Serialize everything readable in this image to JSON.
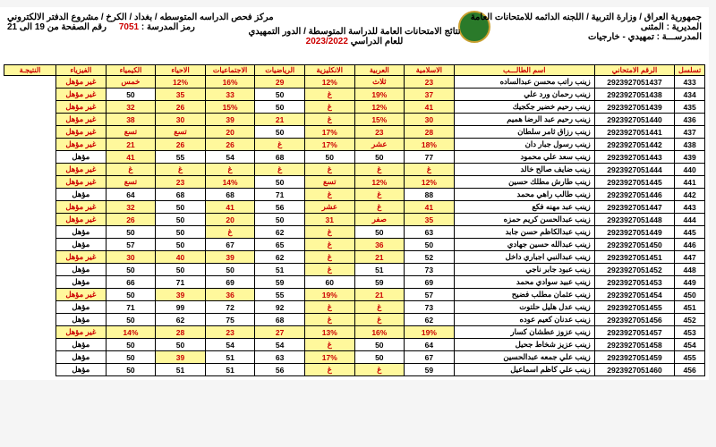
{
  "header": {
    "republic": "جمهورية العراق / وزارة التربية / اللجنه الدائمه للامتحانات العامة",
    "directorate_lbl": "المديرية :",
    "directorate": "المثنى",
    "school_lbl": "المدرســـة :",
    "school": "تمهيدي - خارجيات",
    "center": "مركز فحص الدراسه المتوسطه / بغداد / الكرخ / مشروع الدفتر الالكتروني",
    "code_lbl": "رمز المدرسة :",
    "code": "7051",
    "page_lbl": "رقم الصفحة من 19 الى 21",
    "results_title": "نتائج الامتحانات العامة للدراسة المتوسطة / الدور التمهيدي",
    "year_lbl": "للعام الدراسي",
    "year": "2023/2022"
  },
  "columns": [
    "تسلسل",
    "الرقم الامتحاني",
    "اسم الطالـــب",
    "الاسلامية",
    "العربية",
    "الانكليزية",
    "الرياضيات",
    "الاجتماعيات",
    "الاحياء",
    "الكيمياء",
    "الفيزياء",
    "النتيجـة"
  ],
  "rows": [
    {
      "seq": "433",
      "exam": "2923927051437",
      "name": "زينب راتب محسن عبدالساده",
      "c": [
        {
          "v": "23",
          "h": 1
        },
        {
          "v": "ثلاث",
          "h": 1
        },
        {
          "v": "12%",
          "h": 1
        },
        {
          "v": "29",
          "h": 1
        },
        {
          "v": "16%",
          "h": 1
        },
        {
          "v": "12%",
          "h": 1
        },
        {
          "v": "خمس",
          "h": 1
        }
      ],
      "res": "غير مؤهل",
      "rh": 1
    },
    {
      "seq": "434",
      "exam": "2923927051438",
      "name": "زينب رحمان ورد علي",
      "c": [
        {
          "v": "37",
          "h": 1
        },
        {
          "v": "19%",
          "h": 1
        },
        {
          "v": "غ",
          "h": 1
        },
        {
          "v": "50"
        },
        {
          "v": "33",
          "h": 1
        },
        {
          "v": "35",
          "h": 1
        },
        {
          "v": "50"
        }
      ],
      "res": "غير مؤهل",
      "rh": 1
    },
    {
      "seq": "435",
      "exam": "2923927051439",
      "name": "زينب رحيم خضير جكجيك",
      "c": [
        {
          "v": "41",
          "h": 1
        },
        {
          "v": "12%",
          "h": 1
        },
        {
          "v": "غ",
          "h": 1
        },
        {
          "v": "50"
        },
        {
          "v": "15%",
          "h": 1
        },
        {
          "v": "26",
          "h": 1
        },
        {
          "v": "32",
          "h": 1
        }
      ],
      "res": "غير مؤهل",
      "rh": 1
    },
    {
      "seq": "436",
      "exam": "2923927051440",
      "name": "زينب رحيم عبد الرضا هميم",
      "c": [
        {
          "v": "30",
          "h": 1
        },
        {
          "v": "15%",
          "h": 1
        },
        {
          "v": "غ",
          "h": 1
        },
        {
          "v": "21",
          "h": 1
        },
        {
          "v": "39",
          "h": 1
        },
        {
          "v": "30",
          "h": 1
        },
        {
          "v": "38",
          "h": 1
        }
      ],
      "res": "غير مؤهل",
      "rh": 1
    },
    {
      "seq": "437",
      "exam": "2923927051441",
      "name": "زينب رزاق ثامر سلطان",
      "c": [
        {
          "v": "28",
          "h": 1
        },
        {
          "v": "23",
          "h": 1
        },
        {
          "v": "17%",
          "h": 1
        },
        {
          "v": "50"
        },
        {
          "v": "20",
          "h": 1
        },
        {
          "v": "تسع",
          "h": 1
        },
        {
          "v": "تسع",
          "h": 1
        }
      ],
      "res": "غير مؤهل",
      "rh": 1
    },
    {
      "seq": "438",
      "exam": "2923927051442",
      "name": "زينب رسول جبار دان",
      "c": [
        {
          "v": "18%",
          "h": 1
        },
        {
          "v": "عشر",
          "h": 1
        },
        {
          "v": "17%",
          "h": 1
        },
        {
          "v": "غ",
          "h": 1
        },
        {
          "v": "26",
          "h": 1
        },
        {
          "v": "26",
          "h": 1
        },
        {
          "v": "21",
          "h": 1
        }
      ],
      "res": "غير مؤهل",
      "rh": 1
    },
    {
      "seq": "439",
      "exam": "2923927051443",
      "name": "زينب سعد علي محمود",
      "c": [
        {
          "v": "77"
        },
        {
          "v": "50"
        },
        {
          "v": "50"
        },
        {
          "v": "68"
        },
        {
          "v": "54"
        },
        {
          "v": "55"
        },
        {
          "v": "41",
          "h": 1
        }
      ],
      "res": "مؤهل"
    },
    {
      "seq": "440",
      "exam": "2923927051444",
      "name": "زينب ضايف صالح خالد",
      "c": [
        {
          "v": "غ",
          "h": 1
        },
        {
          "v": "غ",
          "h": 1
        },
        {
          "v": "غ",
          "h": 1
        },
        {
          "v": "غ",
          "h": 1
        },
        {
          "v": "غ",
          "h": 1
        },
        {
          "v": "غ",
          "h": 1
        },
        {
          "v": "غ",
          "h": 1
        }
      ],
      "res": "غير مؤهل",
      "rh": 1
    },
    {
      "seq": "441",
      "exam": "2923927051445",
      "name": "زينب طارش مطلك حسين",
      "c": [
        {
          "v": "12%",
          "h": 1
        },
        {
          "v": "12%",
          "h": 1
        },
        {
          "v": "تسع",
          "h": 1
        },
        {
          "v": "50"
        },
        {
          "v": "14%",
          "h": 1
        },
        {
          "v": "23",
          "h": 1
        },
        {
          "v": "تسع",
          "h": 1
        }
      ],
      "res": "غير مؤهل",
      "rh": 1
    },
    {
      "seq": "442",
      "exam": "2923927051446",
      "name": "زينب طالب راهي محمد",
      "c": [
        {
          "v": "88"
        },
        {
          "v": "غ",
          "h": 1
        },
        {
          "v": "غ",
          "h": 1
        },
        {
          "v": "71"
        },
        {
          "v": "68"
        },
        {
          "v": "68"
        },
        {
          "v": "64"
        }
      ],
      "res": "مؤهل"
    },
    {
      "seq": "443",
      "exam": "2923927051447",
      "name": "زينب عبد مهنه فكع",
      "c": [
        {
          "v": "41",
          "h": 1
        },
        {
          "v": "غ",
          "h": 1
        },
        {
          "v": "عشر",
          "h": 1
        },
        {
          "v": "56"
        },
        {
          "v": "41",
          "h": 1
        },
        {
          "v": "50"
        },
        {
          "v": "32",
          "h": 1
        }
      ],
      "res": "غير مؤهل",
      "rh": 1
    },
    {
      "seq": "444",
      "exam": "2923927051448",
      "name": "زينب عبدالحسن كريم حمزه",
      "c": [
        {
          "v": "35",
          "h": 1
        },
        {
          "v": "صفر",
          "h": 1
        },
        {
          "v": "31",
          "h": 1
        },
        {
          "v": "50"
        },
        {
          "v": "20",
          "h": 1
        },
        {
          "v": "50"
        },
        {
          "v": "26",
          "h": 1
        }
      ],
      "res": "غير مؤهل",
      "rh": 1
    },
    {
      "seq": "445",
      "exam": "2923927051449",
      "name": "زينب عبدالكاظم حسن جابد",
      "c": [
        {
          "v": "63"
        },
        {
          "v": "50"
        },
        {
          "v": "غ",
          "h": 1
        },
        {
          "v": "62"
        },
        {
          "v": "غ",
          "h": 1
        },
        {
          "v": "50"
        },
        {
          "v": "50"
        }
      ],
      "res": "مؤهل"
    },
    {
      "seq": "446",
      "exam": "2923927051450",
      "name": "زينب عبدالله حسين جهادي",
      "c": [
        {
          "v": "50"
        },
        {
          "v": "36",
          "h": 1
        },
        {
          "v": "غ",
          "h": 1
        },
        {
          "v": "65"
        },
        {
          "v": "67"
        },
        {
          "v": "50"
        },
        {
          "v": "57"
        }
      ],
      "res": "مؤهل"
    },
    {
      "seq": "447",
      "exam": "2923927051451",
      "name": "زينب عبدالنبي اجباري داخل",
      "c": [
        {
          "v": "52"
        },
        {
          "v": "21",
          "h": 1
        },
        {
          "v": "غ",
          "h": 1
        },
        {
          "v": "62"
        },
        {
          "v": "39",
          "h": 1
        },
        {
          "v": "40",
          "h": 1
        },
        {
          "v": "30",
          "h": 1
        }
      ],
      "res": "غير مؤهل",
      "rh": 1
    },
    {
      "seq": "448",
      "exam": "2923927051452",
      "name": "زينب عبود جابر ناجي",
      "c": [
        {
          "v": "73"
        },
        {
          "v": "51"
        },
        {
          "v": "غ",
          "h": 1
        },
        {
          "v": "51"
        },
        {
          "v": "50"
        },
        {
          "v": "50"
        },
        {
          "v": "50"
        }
      ],
      "res": "مؤهل"
    },
    {
      "seq": "449",
      "exam": "2923927051453",
      "name": "زينب عبيد سوادي محمد",
      "c": [
        {
          "v": "69"
        },
        {
          "v": "59"
        },
        {
          "v": "60"
        },
        {
          "v": "59"
        },
        {
          "v": "69"
        },
        {
          "v": "71"
        },
        {
          "v": "66"
        }
      ],
      "res": "مؤهل"
    },
    {
      "seq": "450",
      "exam": "2923927051454",
      "name": "زينب عثمان مطلب فضيح",
      "c": [
        {
          "v": "57"
        },
        {
          "v": "21",
          "h": 1
        },
        {
          "v": "19%",
          "h": 1
        },
        {
          "v": "55"
        },
        {
          "v": "36",
          "h": 1
        },
        {
          "v": "39",
          "h": 1
        },
        {
          "v": "50"
        }
      ],
      "res": "غير مؤهل",
      "rh": 1
    },
    {
      "seq": "451",
      "exam": "2923927051455",
      "name": "زينب عدل هليل حلتوت",
      "c": [
        {
          "v": "73"
        },
        {
          "v": "غ",
          "h": 1
        },
        {
          "v": "غ",
          "h": 1
        },
        {
          "v": "92"
        },
        {
          "v": "72"
        },
        {
          "v": "99"
        },
        {
          "v": "71"
        }
      ],
      "res": "مؤهل"
    },
    {
      "seq": "452",
      "exam": "2923927051456",
      "name": "زينب عدنان كعيم عوده",
      "c": [
        {
          "v": "62"
        },
        {
          "v": "غ",
          "h": 1
        },
        {
          "v": "غ",
          "h": 1
        },
        {
          "v": "68"
        },
        {
          "v": "75"
        },
        {
          "v": "62"
        },
        {
          "v": "50"
        }
      ],
      "res": "مؤهل"
    },
    {
      "seq": "453",
      "exam": "2923927051457",
      "name": "زينب عزوز عطشان كسار",
      "c": [
        {
          "v": "19%",
          "h": 1
        },
        {
          "v": "16%",
          "h": 1
        },
        {
          "v": "13%",
          "h": 1
        },
        {
          "v": "27",
          "h": 1
        },
        {
          "v": "23",
          "h": 1
        },
        {
          "v": "28",
          "h": 1
        },
        {
          "v": "14%",
          "h": 1
        }
      ],
      "res": "غير مؤهل",
      "rh": 1
    },
    {
      "seq": "454",
      "exam": "2923927051458",
      "name": "زينب عزيز شخاط جحيل",
      "c": [
        {
          "v": "64"
        },
        {
          "v": "50"
        },
        {
          "v": "غ",
          "h": 1
        },
        {
          "v": "54"
        },
        {
          "v": "54"
        },
        {
          "v": "50"
        },
        {
          "v": "50"
        }
      ],
      "res": "مؤهل"
    },
    {
      "seq": "455",
      "exam": "2923927051459",
      "name": "زينب علي جمعه عبدالحسين",
      "c": [
        {
          "v": "67"
        },
        {
          "v": "50"
        },
        {
          "v": "17%",
          "h": 1
        },
        {
          "v": "63"
        },
        {
          "v": "51"
        },
        {
          "v": "39",
          "h": 1
        },
        {
          "v": "50"
        }
      ],
      "res": "مؤهل"
    },
    {
      "seq": "456",
      "exam": "2923927051460",
      "name": "زينب علي كاظم اسماعيل",
      "c": [
        {
          "v": "59"
        },
        {
          "v": "غ",
          "h": 1
        },
        {
          "v": "غ",
          "h": 1
        },
        {
          "v": "56"
        },
        {
          "v": "51"
        },
        {
          "v": "51"
        },
        {
          "v": "50"
        }
      ],
      "res": "مؤهل"
    }
  ]
}
